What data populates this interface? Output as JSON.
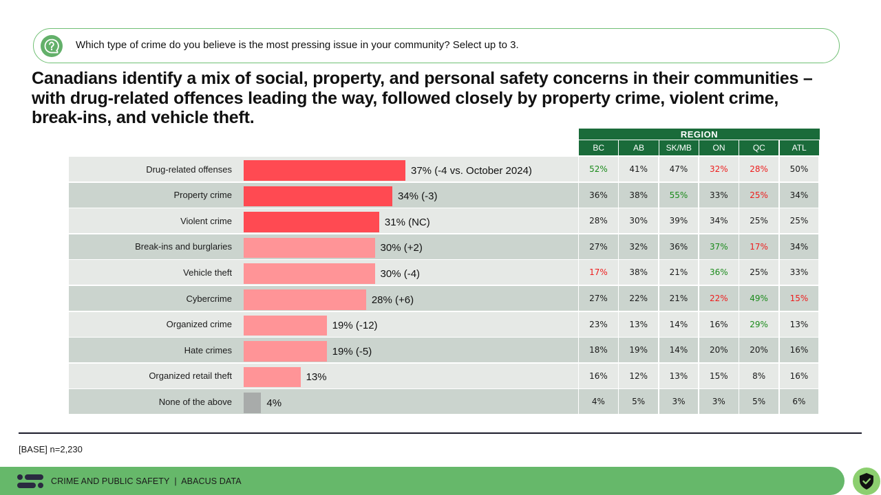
{
  "question": {
    "icon": "question-bubble-icon",
    "text": "Which type of crime do you believe is the most pressing issue in your community? Select up to 3."
  },
  "headline": "Canadians identify a mix of social, property, and personal safety concerns in their communities – with drug-related offences leading the way, followed closely by property crime, violent crime, break-ins, and vehicle theft.",
  "colors": {
    "bar_top": "#ff4a52",
    "bar_other": "#ff9497",
    "bar_none": "#a8abaa",
    "header_green": "#1a6b3a",
    "positive_text": "#1a8a1a",
    "negative_text": "#ee1c1c",
    "footer_green": "#66b86a"
  },
  "chart_data": {
    "type": "bar",
    "orientation": "horizontal",
    "title": "",
    "xlabel": "",
    "ylabel": "",
    "xlim": [
      0,
      100
    ],
    "categories": [
      "Drug-related offenses",
      "Property crime",
      "Violent crime",
      "Break-ins and burglaries",
      "Vehicle theft",
      "Cybercrime",
      "Organized crime",
      "Hate crimes",
      "Organized retail theft",
      "None of the above"
    ],
    "values": [
      37,
      34,
      31,
      30,
      30,
      28,
      19,
      19,
      13,
      4
    ],
    "data_labels": [
      "37% (-4 vs. October 2024)",
      "34% (-3)",
      "31% (NC)",
      "30% (+2)",
      "30% (-4)",
      "28% (+6)",
      "19% (-12)",
      "19% (-5)",
      "13%",
      "4%"
    ],
    "bar_styles": [
      "top",
      "top",
      "top",
      "other",
      "other",
      "other",
      "other",
      "other",
      "other",
      "none"
    ],
    "legend": "none",
    "grid": false
  },
  "region_table": {
    "group_label": "REGION",
    "columns": [
      "BC",
      "AB",
      "SK/MB",
      "ON",
      "QC",
      "ATL"
    ],
    "rows": [
      [
        {
          "v": "52%",
          "s": "pos"
        },
        {
          "v": "41%",
          "s": ""
        },
        {
          "v": "47%",
          "s": ""
        },
        {
          "v": "32%",
          "s": "neg"
        },
        {
          "v": "28%",
          "s": "neg"
        },
        {
          "v": "50%",
          "s": ""
        }
      ],
      [
        {
          "v": "36%",
          "s": ""
        },
        {
          "v": "38%",
          "s": ""
        },
        {
          "v": "55%",
          "s": "pos"
        },
        {
          "v": "33%",
          "s": ""
        },
        {
          "v": "25%",
          "s": "neg"
        },
        {
          "v": "34%",
          "s": ""
        }
      ],
      [
        {
          "v": "28%",
          "s": ""
        },
        {
          "v": "30%",
          "s": ""
        },
        {
          "v": "39%",
          "s": ""
        },
        {
          "v": "34%",
          "s": ""
        },
        {
          "v": "25%",
          "s": ""
        },
        {
          "v": "25%",
          "s": ""
        }
      ],
      [
        {
          "v": "27%",
          "s": ""
        },
        {
          "v": "32%",
          "s": ""
        },
        {
          "v": "36%",
          "s": ""
        },
        {
          "v": "37%",
          "s": "pos"
        },
        {
          "v": "17%",
          "s": "neg"
        },
        {
          "v": "34%",
          "s": ""
        }
      ],
      [
        {
          "v": "17%",
          "s": "neg"
        },
        {
          "v": "38%",
          "s": ""
        },
        {
          "v": "21%",
          "s": ""
        },
        {
          "v": "36%",
          "s": "pos"
        },
        {
          "v": "25%",
          "s": ""
        },
        {
          "v": "33%",
          "s": ""
        }
      ],
      [
        {
          "v": "27%",
          "s": ""
        },
        {
          "v": "22%",
          "s": ""
        },
        {
          "v": "21%",
          "s": ""
        },
        {
          "v": "22%",
          "s": "neg"
        },
        {
          "v": "49%",
          "s": "pos"
        },
        {
          "v": "15%",
          "s": "neg"
        }
      ],
      [
        {
          "v": "23%",
          "s": ""
        },
        {
          "v": "13%",
          "s": ""
        },
        {
          "v": "14%",
          "s": ""
        },
        {
          "v": "16%",
          "s": ""
        },
        {
          "v": "29%",
          "s": "pos"
        },
        {
          "v": "13%",
          "s": ""
        }
      ],
      [
        {
          "v": "18%",
          "s": ""
        },
        {
          "v": "19%",
          "s": ""
        },
        {
          "v": "14%",
          "s": ""
        },
        {
          "v": "20%",
          "s": ""
        },
        {
          "v": "20%",
          "s": ""
        },
        {
          "v": "16%",
          "s": ""
        }
      ],
      [
        {
          "v": "16%",
          "s": ""
        },
        {
          "v": "12%",
          "s": ""
        },
        {
          "v": "13%",
          "s": ""
        },
        {
          "v": "15%",
          "s": ""
        },
        {
          "v": "8%",
          "s": ""
        },
        {
          "v": "16%",
          "s": ""
        }
      ],
      [
        {
          "v": "4%",
          "s": ""
        },
        {
          "v": "5%",
          "s": ""
        },
        {
          "v": "3%",
          "s": ""
        },
        {
          "v": "3%",
          "s": ""
        },
        {
          "v": "5%",
          "s": ""
        },
        {
          "v": "6%",
          "s": ""
        }
      ]
    ]
  },
  "base_note": "[BASE] n=2,230",
  "footer": {
    "logo": "abacus-logo-icon",
    "text": "CRIME AND PUBLIC SAFETY  |  ABACUS DATA",
    "badge_icon": "shield-check-icon"
  }
}
